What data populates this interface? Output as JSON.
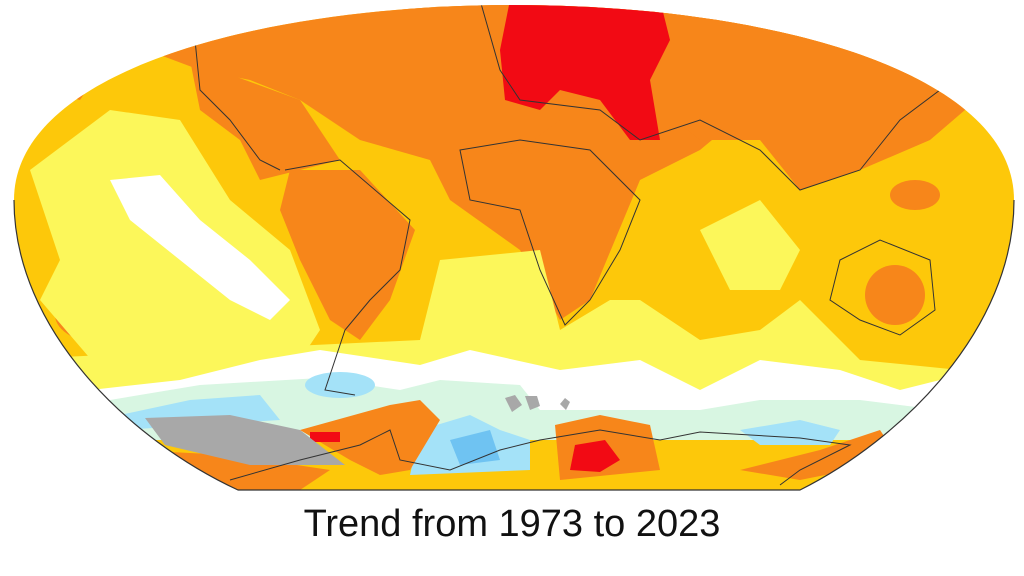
{
  "caption": "Trend from 1973 to 2023",
  "colors": {
    "orange": "#f7861a",
    "gold": "#fdc80a",
    "yellow": "#fcf75a",
    "white": "#ffffff",
    "pale_green": "#d8f6e2",
    "light_blue": "#a4e2f8",
    "blue": "#6fc3f2",
    "red": "#f20a14",
    "no_data": "#a8a8a8",
    "coast": "#333333"
  }
}
